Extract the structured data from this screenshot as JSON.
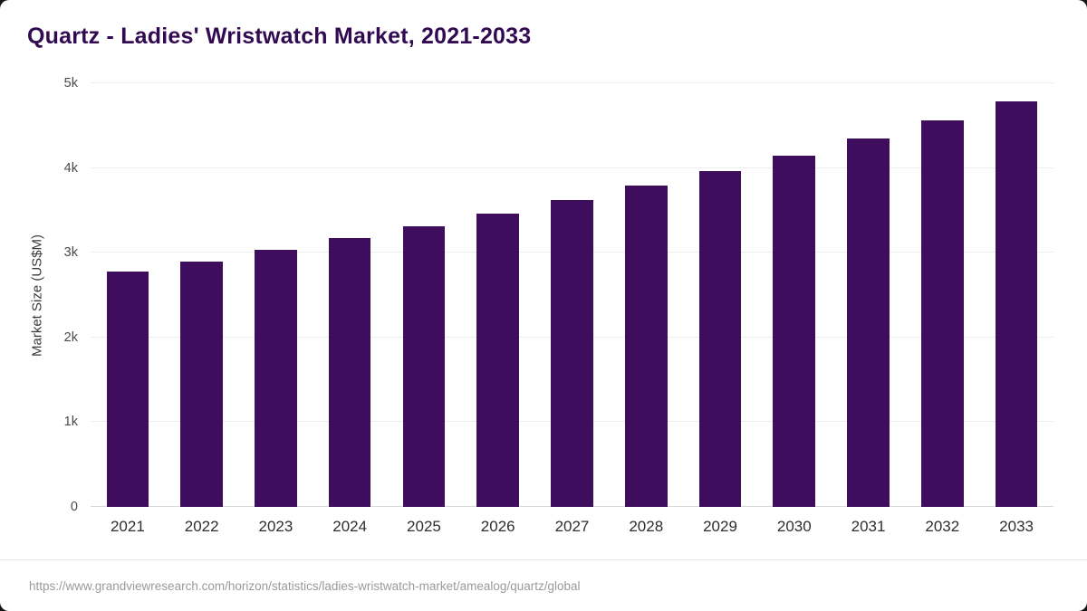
{
  "page": {
    "title": "Quartz - Ladies' Wristwatch Market, 2021-2033",
    "source_url": "https://www.grandviewresearch.com/horizon/statistics/ladies-wristwatch-market/amealog/quartz/global"
  },
  "colors": {
    "bar": "#3f0d5e",
    "title": "#320a52",
    "grid": "#ececec",
    "axis": "#d8d8d8",
    "source_text": "#9a9a9a"
  },
  "chart_data": {
    "type": "bar",
    "title": "Quartz - Ladies' Wristwatch Market, 2021-2033",
    "xlabel": "",
    "ylabel": "Market Size (US$M)",
    "ylim": [
      0,
      5000
    ],
    "grid": true,
    "legend": "none",
    "categories": [
      "2021",
      "2022",
      "2023",
      "2024",
      "2025",
      "2026",
      "2027",
      "2028",
      "2029",
      "2030",
      "2031",
      "2032",
      "2033"
    ],
    "values": [
      2780,
      2900,
      3030,
      3170,
      3310,
      3460,
      3620,
      3790,
      3960,
      4150,
      4350,
      4560,
      4790
    ],
    "yticks": [
      {
        "value": 0,
        "label": "0"
      },
      {
        "value": 1000,
        "label": "1k"
      },
      {
        "value": 2000,
        "label": "2k"
      },
      {
        "value": 3000,
        "label": "3k"
      },
      {
        "value": 4000,
        "label": "4k"
      },
      {
        "value": 5000,
        "label": "5k"
      }
    ]
  }
}
